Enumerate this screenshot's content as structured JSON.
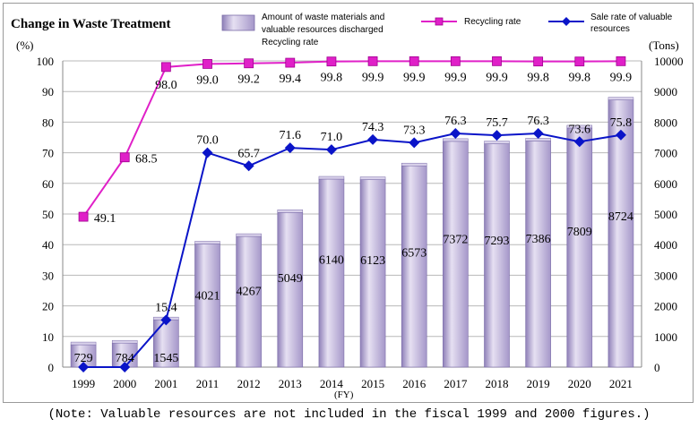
{
  "chart_data": {
    "type": "bar+line",
    "title": "Change in Waste Treatment",
    "y_left_label": "(%)",
    "y_right_label": "(Tons)",
    "x_unit_label": "(FY)",
    "categories": [
      "1999",
      "2000",
      "2001",
      "2011",
      "2012",
      "2013",
      "2014",
      "2015",
      "2016",
      "2017",
      "2018",
      "2019",
      "2020",
      "2021"
    ],
    "ylim_left": [
      0,
      100
    ],
    "ylim_right": [
      0,
      10000
    ],
    "y_left_ticks": [
      "0",
      "10",
      "20",
      "30",
      "40",
      "50",
      "60",
      "70",
      "80",
      "90",
      "100"
    ],
    "y_right_ticks": [
      "0",
      "1000",
      "2000",
      "3000",
      "4000",
      "5000",
      "6000",
      "7000",
      "8000",
      "9000",
      "10000"
    ],
    "grid": true,
    "legend_position": "top",
    "series": [
      {
        "name": "Amount of waste materials and valuable resources discharged",
        "legend_overlap": "Recycling rate",
        "kind": "bar",
        "axis": "right",
        "color": "#b3a6d2",
        "values": [
          729,
          784,
          1545,
          4021,
          4267,
          5049,
          6140,
          6123,
          6573,
          7372,
          7293,
          7386,
          7809,
          8724
        ],
        "labels": [
          "729",
          "784",
          "1545",
          "4021",
          "4267",
          "5049",
          "6140",
          "6123",
          "6573",
          "7372",
          "7293",
          "7386",
          "7809",
          "8724"
        ]
      },
      {
        "name": "Recycling rate",
        "kind": "line",
        "axis": "left",
        "color": "#e020c8",
        "values": [
          49.1,
          68.5,
          98.0,
          99.0,
          99.2,
          99.4,
          99.8,
          99.9,
          99.9,
          99.9,
          99.9,
          99.8,
          99.8,
          99.9
        ],
        "labels": [
          "49.1",
          "68.5",
          "98.0",
          "99.0",
          "99.2",
          "99.4",
          "99.8",
          "99.9",
          "99.9",
          "99.9",
          "99.9",
          "99.8",
          "99.8",
          "99.9"
        ]
      },
      {
        "name": "Sale rate of valuable resources",
        "name_lines": [
          "Sale rate of valuable",
          "resources"
        ],
        "kind": "line",
        "axis": "left",
        "color": "#0a14c8",
        "values": [
          0,
          0,
          15.4,
          70.0,
          65.7,
          71.6,
          71.0,
          74.3,
          73.3,
          76.3,
          75.7,
          76.3,
          73.6,
          75.8
        ],
        "labels": [
          null,
          null,
          "15.4",
          "70.0",
          "65.7",
          "71.6",
          "71.0",
          "74.3",
          "73.3",
          "76.3",
          "75.7",
          "76.3",
          "73.6",
          "75.8"
        ]
      }
    ]
  },
  "note": "(Note: Valuable resources are not included in the fiscal 1999 and 2000 figures.)"
}
